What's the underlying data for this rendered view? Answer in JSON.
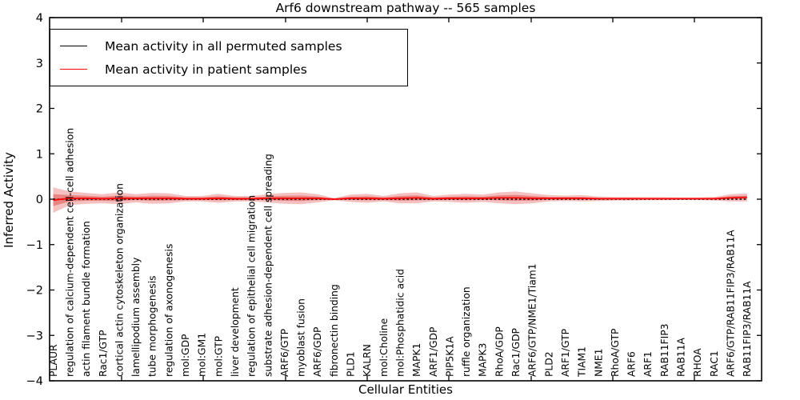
{
  "chart_data": {
    "type": "line",
    "title": "Arf6 downstream pathway -- 565 samples",
    "xlabel": "Cellular Entities",
    "ylabel": "Inferred Activity",
    "ylim": [
      -4,
      4
    ],
    "ytick_labels": [
      "4",
      "3",
      "2",
      "1",
      "0",
      "−1",
      "−2",
      "−3",
      "−4"
    ],
    "grid": false,
    "legend_position": "upper left",
    "categories": [
      "PLAUR",
      "regulation of calcium-dependent cell-cell adhesion",
      "actin filament bundle formation",
      "Rac1/GTP",
      "cortical actin cytoskeleton organization",
      "lamellipodium assembly",
      "tube morphogenesis",
      "regulation of axonogenesis",
      "mol:GDP",
      "mol:GM1",
      "mol:GTP",
      "liver development",
      "regulation of epithelial cell migration",
      "substrate adhesion-dependent cell spreading",
      "ARF6/GTP",
      "myoblast fusion",
      "ARF6/GDP",
      "fibronectin binding",
      "PLD1",
      "KALRN",
      "mol:Choline",
      "mol:Phosphatidic acid",
      "MAPK1",
      "ARF1/GDP",
      "PIP5K1A",
      "ruffle organization",
      "MAPK3",
      "RhoA/GDP",
      "Rac1/GDP",
      "ARF6/GTP/NME1/Tiam1",
      "PLD2",
      "ARF1/GTP",
      "TIAM1",
      "NME1",
      "RhoA/GTP",
      "ARF6",
      "ARF1",
      "RAB11FIP3",
      "RAB11A",
      "RHOA",
      "RAC1",
      "ARF6/GTP/RAB11FIP3/RAB11A",
      "RAB11FIP3/RAB11A"
    ],
    "series": [
      {
        "name": "Mean activity in all permuted samples",
        "color": "#000000",
        "style": "dashed",
        "values": [
          0,
          0,
          0,
          0,
          0,
          0,
          0,
          0,
          0,
          0,
          0,
          0,
          0,
          0,
          0,
          0,
          0,
          0,
          0,
          0,
          0,
          0,
          0,
          0,
          0,
          0,
          0,
          0,
          0,
          0,
          0,
          0,
          0,
          0,
          0,
          0,
          0,
          0,
          0,
          0,
          0,
          0,
          0
        ]
      },
      {
        "name": "Mean activity in patient samples",
        "color": "#ff0000",
        "style": "solid",
        "values": [
          -0.02,
          0.02,
          0.02,
          0.01,
          0.02,
          0.02,
          0.02,
          0.02,
          0.01,
          0.01,
          0.02,
          0.01,
          0.01,
          0.02,
          0.02,
          0.02,
          0.02,
          0.0,
          0.02,
          0.02,
          0.01,
          0.02,
          0.03,
          0.01,
          0.02,
          0.02,
          0.02,
          0.03,
          0.03,
          0.02,
          0.02,
          0.02,
          0.02,
          0.01,
          0.01,
          0.01,
          0.01,
          0.01,
          0.01,
          0.01,
          0.01,
          0.03,
          0.04
        ]
      }
    ],
    "band": {
      "description": "red shaded uncertainty band around patient mean",
      "color": "#dc3c3c",
      "outer_halfwidth": [
        0.28,
        0.15,
        0.12,
        0.1,
        0.13,
        0.09,
        0.12,
        0.11,
        0.06,
        0.06,
        0.1,
        0.06,
        0.06,
        0.09,
        0.12,
        0.13,
        0.09,
        0.025,
        0.08,
        0.1,
        0.06,
        0.11,
        0.12,
        0.06,
        0.08,
        0.1,
        0.08,
        0.12,
        0.14,
        0.11,
        0.07,
        0.06,
        0.07,
        0.05,
        0.04,
        0.04,
        0.035,
        0.035,
        0.03,
        0.03,
        0.04,
        0.08,
        0.09
      ],
      "inner_halfwidth": [
        0.13,
        0.07,
        0.055,
        0.045,
        0.06,
        0.04,
        0.055,
        0.05,
        0.03,
        0.03,
        0.045,
        0.03,
        0.03,
        0.04,
        0.055,
        0.06,
        0.04,
        0.012,
        0.035,
        0.045,
        0.03,
        0.05,
        0.055,
        0.03,
        0.035,
        0.045,
        0.035,
        0.055,
        0.065,
        0.05,
        0.03,
        0.03,
        0.03,
        0.022,
        0.018,
        0.018,
        0.016,
        0.016,
        0.014,
        0.014,
        0.018,
        0.035,
        0.04
      ]
    }
  }
}
